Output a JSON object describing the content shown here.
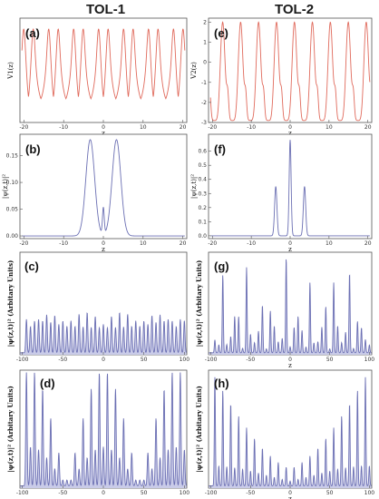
{
  "column_titles": [
    "TOL-1",
    "TOL-2"
  ],
  "chart_data": [
    {
      "id": "a",
      "panel_label": "(a)",
      "type": "line",
      "ylabel": "V1(z)",
      "xlabel": "z",
      "xlim": [
        -21,
        21
      ],
      "ylim": [
        -1.2,
        1.2
      ],
      "xticks": [
        -20,
        -10,
        0,
        10,
        20
      ],
      "yticks": [],
      "series": [
        {
          "color": "#e06a5c",
          "function": "TOL-1 potential: periodic double-well, period 2*pi, local minimum at z = 0 and peaks at about +/-0.9 near z = +/-1.1"
        }
      ]
    },
    {
      "id": "b",
      "panel_label": "(b)",
      "type": "line",
      "ylabel": "|ψ(z,t)|²",
      "xlabel": "z",
      "xlim": [
        -21,
        21
      ],
      "ylim": [
        -0.005,
        0.19
      ],
      "xticks": [
        -20,
        -10,
        0,
        10,
        20
      ],
      "yticks": [
        0.0,
        0.05,
        0.1,
        0.15
      ],
      "series": [
        {
          "color": "#6b6fb3",
          "function": "two Gaussian peaks of height 0.18 centred at z = -3.3 and z = +3.3, with a small peak of 0.05 at z = 0"
        }
      ]
    },
    {
      "id": "c",
      "panel_label": "(c)",
      "type": "line",
      "ylabel": "|ψ(z,t)|² (Arbitary Units)",
      "xlabel": "",
      "xlim": [
        -103,
        103
      ],
      "ylim": [
        0,
        1.02
      ],
      "xticks": [
        -100,
        -50,
        0,
        50,
        100
      ],
      "yticks": [],
      "series": [
        {
          "color": "#6b6fb3",
          "fill": "#c9cbe8",
          "function": "Talbot carpet slice: sharp periodic peaks of unequal heights across z from -100 to 100"
        }
      ]
    },
    {
      "id": "d",
      "panel_label": "(d)",
      "type": "line",
      "ylabel": "|ψ(z,t)|² (Arbitary Units)",
      "xlabel": "",
      "xlim": [
        -103,
        103
      ],
      "ylim": [
        0,
        1.02
      ],
      "xticks": [
        -100,
        -50,
        0,
        50,
        100
      ],
      "yticks": [],
      "series": [
        {
          "color": "#6b6fb3",
          "fill": "#c9cbe8",
          "function": "periodic peaks with a W-shaped height envelope: tallest near z = 0 and z = +/-90"
        }
      ]
    },
    {
      "id": "e",
      "panel_label": "(e)",
      "type": "line",
      "ylabel": "V2(z)",
      "xlabel": "z",
      "xlim": [
        -21,
        21
      ],
      "ylim": [
        -3,
        2.2
      ],
      "xticks": [
        -20,
        -10,
        0,
        10,
        20
      ],
      "yticks": [
        -3,
        -2,
        -1,
        0,
        1,
        2
      ],
      "series": [
        {
          "color": "#e06a5c",
          "function": "TOL-2 potential: periodic, maximum about 2 and minimum about -2.9, with a shoulder on the descending side"
        }
      ]
    },
    {
      "id": "f",
      "panel_label": "(f)",
      "type": "line",
      "ylabel": "|ψ(z,t)|²",
      "xlabel": "z",
      "xlim": [
        -21,
        21
      ],
      "ylim": [
        -0.02,
        0.72
      ],
      "xticks": [
        -20,
        -10,
        0,
        10,
        20
      ],
      "yticks": [
        0.0,
        0.1,
        0.2,
        0.3,
        0.4,
        0.5,
        0.6
      ],
      "series": [
        {
          "color": "#6b6fb3",
          "function": "three sharp peaks: 0.68 at z = 0 and 0.35 at z = -3.7 and z = +3.7"
        }
      ]
    },
    {
      "id": "g",
      "panel_label": "(g)",
      "type": "line",
      "ylabel": "|ψ(z,t)|² (Arbitary Units)",
      "xlabel": "z",
      "xlim": [
        -103,
        103
      ],
      "ylim": [
        0,
        1.02
      ],
      "xticks": [
        -100,
        -50,
        0,
        50,
        100
      ],
      "yticks": [],
      "series": [
        {
          "color": "#6b6fb3",
          "fill": "#c9cbe8",
          "function": "periodic sharp peaks with strongly varying heights"
        }
      ]
    },
    {
      "id": "h",
      "panel_label": "(h)",
      "type": "line",
      "ylabel": "|ψ(z,t)|² (Arbitary Units)",
      "xlabel": "z",
      "xlim": [
        -103,
        103
      ],
      "ylim": [
        0,
        1.02
      ],
      "xticks": [
        -100,
        -50,
        0,
        50,
        100
      ],
      "yticks": [],
      "series": [
        {
          "color": "#6b6fb3",
          "fill": "#c9cbe8",
          "function": "periodic sharp peaks with heights rising toward the edges"
        }
      ]
    }
  ]
}
